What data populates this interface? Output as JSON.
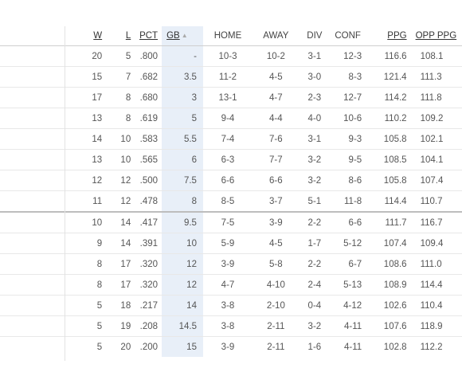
{
  "headers": {
    "w": "W",
    "l": "L",
    "pct": "PCT",
    "gb": "GB",
    "gb_sort_icon": "sort-ascending-icon",
    "home": "HOME",
    "away": "AWAY",
    "div": "DIV",
    "conf": "CONF",
    "ppg": "PPG",
    "opp_ppg": "OPP PPG"
  },
  "rows": [
    {
      "w": "20",
      "l": "5",
      "pct": ".800",
      "gb": "-",
      "home": "10-3",
      "away": "10-2",
      "div": "3-1",
      "conf": "12-3",
      "ppg": "116.6",
      "opp_ppg": "108.1"
    },
    {
      "w": "15",
      "l": "7",
      "pct": ".682",
      "gb": "3.5",
      "home": "11-2",
      "away": "4-5",
      "div": "3-0",
      "conf": "8-3",
      "ppg": "121.4",
      "opp_ppg": "111.3"
    },
    {
      "w": "17",
      "l": "8",
      "pct": ".680",
      "gb": "3",
      "home": "13-1",
      "away": "4-7",
      "div": "2-3",
      "conf": "12-7",
      "ppg": "114.2",
      "opp_ppg": "111.8"
    },
    {
      "w": "13",
      "l": "8",
      "pct": ".619",
      "gb": "5",
      "home": "9-4",
      "away": "4-4",
      "div": "4-0",
      "conf": "10-6",
      "ppg": "110.2",
      "opp_ppg": "109.2"
    },
    {
      "w": "14",
      "l": "10",
      "pct": ".583",
      "gb": "5.5",
      "home": "7-4",
      "away": "7-6",
      "div": "3-1",
      "conf": "9-3",
      "ppg": "105.8",
      "opp_ppg": "102.1"
    },
    {
      "w": "13",
      "l": "10",
      "pct": ".565",
      "gb": "6",
      "home": "6-3",
      "away": "7-7",
      "div": "3-2",
      "conf": "9-5",
      "ppg": "108.5",
      "opp_ppg": "104.1"
    },
    {
      "w": "12",
      "l": "12",
      "pct": ".500",
      "gb": "7.5",
      "home": "6-6",
      "away": "6-6",
      "div": "3-2",
      "conf": "8-6",
      "ppg": "105.8",
      "opp_ppg": "107.4"
    },
    {
      "w": "11",
      "l": "12",
      "pct": ".478",
      "gb": "8",
      "home": "8-5",
      "away": "3-7",
      "div": "5-1",
      "conf": "11-8",
      "ppg": "114.4",
      "opp_ppg": "110.7"
    },
    {
      "w": "10",
      "l": "14",
      "pct": ".417",
      "gb": "9.5",
      "home": "7-5",
      "away": "3-9",
      "div": "2-2",
      "conf": "6-6",
      "ppg": "111.7",
      "opp_ppg": "116.7"
    },
    {
      "w": "9",
      "l": "14",
      "pct": ".391",
      "gb": "10",
      "home": "5-9",
      "away": "4-5",
      "div": "1-7",
      "conf": "5-12",
      "ppg": "107.4",
      "opp_ppg": "109.4"
    },
    {
      "w": "8",
      "l": "17",
      "pct": ".320",
      "gb": "12",
      "home": "3-9",
      "away": "5-8",
      "div": "2-2",
      "conf": "6-7",
      "ppg": "108.6",
      "opp_ppg": "111.0"
    },
    {
      "w": "8",
      "l": "17",
      "pct": ".320",
      "gb": "12",
      "home": "4-7",
      "away": "4-10",
      "div": "2-4",
      "conf": "5-13",
      "ppg": "108.9",
      "opp_ppg": "114.4"
    },
    {
      "w": "5",
      "l": "18",
      "pct": ".217",
      "gb": "14",
      "home": "3-8",
      "away": "2-10",
      "div": "0-4",
      "conf": "4-12",
      "ppg": "102.6",
      "opp_ppg": "110.4"
    },
    {
      "w": "5",
      "l": "19",
      "pct": ".208",
      "gb": "14.5",
      "home": "3-8",
      "away": "2-11",
      "div": "3-2",
      "conf": "4-11",
      "ppg": "107.6",
      "opp_ppg": "118.9"
    },
    {
      "w": "5",
      "l": "20",
      "pct": ".200",
      "gb": "15",
      "home": "3-9",
      "away": "2-11",
      "div": "1-6",
      "conf": "4-11",
      "ppg": "102.8",
      "opp_ppg": "112.2"
    }
  ],
  "colors": {
    "gb_highlight": "#e8eff8",
    "text": "#555555",
    "header_text": "#333333"
  }
}
